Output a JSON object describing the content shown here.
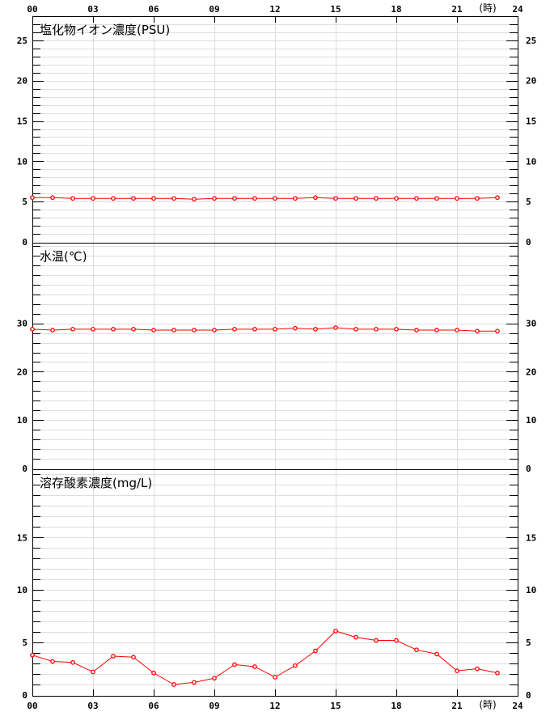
{
  "chart_data": [
    {
      "type": "line",
      "title": "塩化物イオン濃度(PSU)",
      "x": [
        0,
        1,
        2,
        3,
        4,
        5,
        6,
        7,
        8,
        9,
        10,
        11,
        12,
        13,
        14,
        15,
        16,
        17,
        18,
        19,
        20,
        21,
        22,
        23
      ],
      "values": [
        5.5,
        5.5,
        5.4,
        5.4,
        5.4,
        5.4,
        5.4,
        5.4,
        5.3,
        5.4,
        5.4,
        5.4,
        5.4,
        5.4,
        5.5,
        5.4,
        5.4,
        5.4,
        5.4,
        5.4,
        5.4,
        5.4,
        5.4,
        5.5
      ],
      "ylim": [
        0,
        28
      ],
      "yticks": [
        0,
        5,
        10,
        15,
        20,
        25
      ],
      "minor_step": 1
    },
    {
      "type": "line",
      "title": "水温(℃)",
      "x": [
        0,
        1,
        2,
        3,
        4,
        5,
        6,
        7,
        8,
        9,
        10,
        11,
        12,
        13,
        14,
        15,
        16,
        17,
        18,
        19,
        20,
        21,
        22,
        23
      ],
      "values": [
        28.8,
        28.6,
        28.8,
        28.8,
        28.8,
        28.8,
        28.6,
        28.6,
        28.6,
        28.6,
        28.8,
        28.8,
        28.8,
        29.0,
        28.8,
        29.1,
        28.8,
        28.8,
        28.8,
        28.6,
        28.6,
        28.6,
        28.4,
        28.4
      ],
      "ylim": [
        0,
        46.67
      ],
      "yticks": [
        0,
        10,
        20,
        30
      ],
      "minor_step": 2
    },
    {
      "type": "line",
      "title": "溶存酸素濃度(mg/L)",
      "x": [
        0,
        1,
        2,
        3,
        4,
        5,
        6,
        7,
        8,
        9,
        10,
        11,
        12,
        13,
        14,
        15,
        16,
        17,
        18,
        19,
        20,
        21,
        22,
        23
      ],
      "values": [
        3.8,
        3.2,
        3.1,
        2.2,
        3.7,
        3.6,
        2.1,
        1.0,
        1.2,
        1.6,
        2.9,
        2.7,
        1.7,
        2.8,
        4.2,
        6.1,
        5.5,
        5.2,
        5.2,
        4.3,
        3.9,
        2.3,
        2.5,
        2.1
      ],
      "ylim": [
        0,
        21.5
      ],
      "yticks": [
        0,
        5,
        10,
        15
      ],
      "minor_step": 1
    }
  ],
  "xaxis": {
    "ticks": [
      "00",
      "03",
      "06",
      "09",
      "12",
      "15",
      "18",
      "21",
      "24"
    ],
    "unit": "(時)",
    "range": [
      0,
      24
    ]
  },
  "colors": {
    "series": "#ff0000",
    "grid": "#dddddd",
    "axis": "#000000"
  }
}
